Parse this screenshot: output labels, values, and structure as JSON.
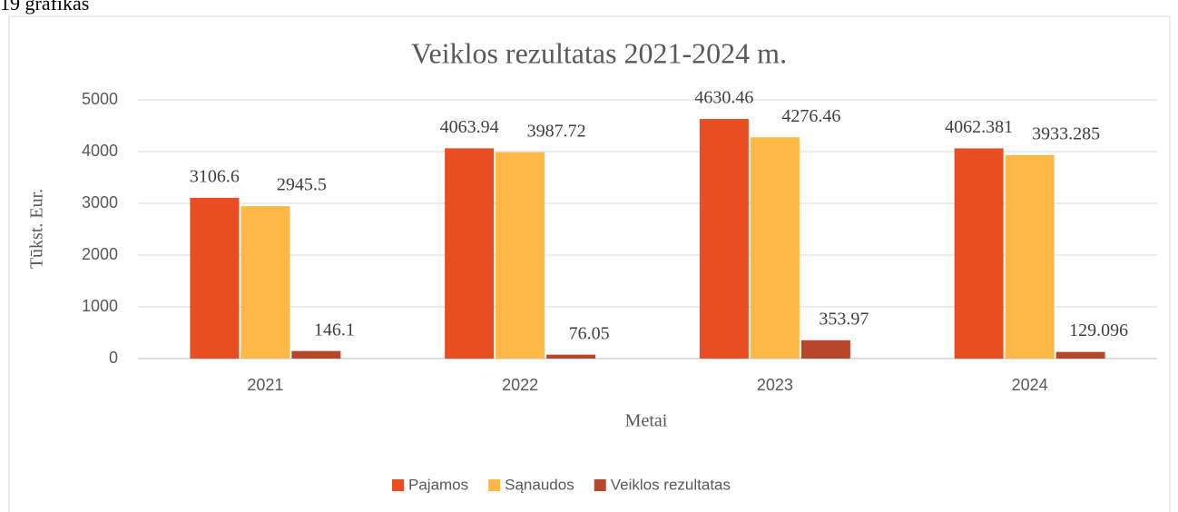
{
  "caption": "19 grafikas",
  "chart_data": {
    "type": "bar",
    "title": "Veiklos rezultatas 2021-2024 m.",
    "x_label": "Metai",
    "y_label": "Tūkst. Eur.",
    "categories": [
      "2021",
      "2022",
      "2023",
      "2024"
    ],
    "series": [
      {
        "name": "Pajamos",
        "color": "#e84e22",
        "values": [
          3106.6,
          4063.94,
          4630.46,
          4062.381
        ]
      },
      {
        "name": "Sąnaudos",
        "color": "#ffb845",
        "values": [
          2945.5,
          3987.72,
          4276.46,
          3933.285
        ]
      },
      {
        "name": "Veiklos rezultatas",
        "color": "#b7472a",
        "values": [
          146.1,
          76.05,
          353.97,
          129.096
        ]
      }
    ],
    "ylim": [
      0,
      5000
    ],
    "yticks": [
      0,
      1000,
      2000,
      3000,
      4000,
      5000
    ],
    "grid": true,
    "legend": "bottom"
  }
}
